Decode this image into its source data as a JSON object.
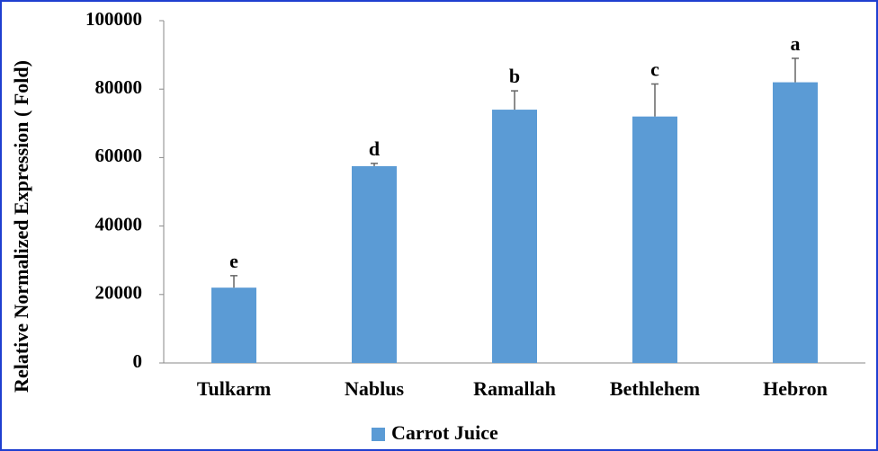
{
  "chart_data": {
    "type": "bar",
    "y_label": "Relative Normalized Expression ( Fold)",
    "categories": [
      "Tulkarm",
      "Nablus",
      "Ramallah",
      "Bethlehem",
      "Hebron"
    ],
    "series": [
      {
        "name": "Carrot Juice",
        "color": "#5b9bd5",
        "values": [
          22000,
          57500,
          74000,
          72000,
          82000
        ],
        "errors": [
          3500,
          800,
          5500,
          9500,
          7000
        ]
      }
    ],
    "annotations": [
      "e",
      "d",
      "b",
      "c",
      "a"
    ],
    "ylim": [
      0,
      100000
    ],
    "yticks": [
      0,
      20000,
      40000,
      60000,
      80000,
      100000
    ],
    "grid": false,
    "legend": "bottom"
  }
}
